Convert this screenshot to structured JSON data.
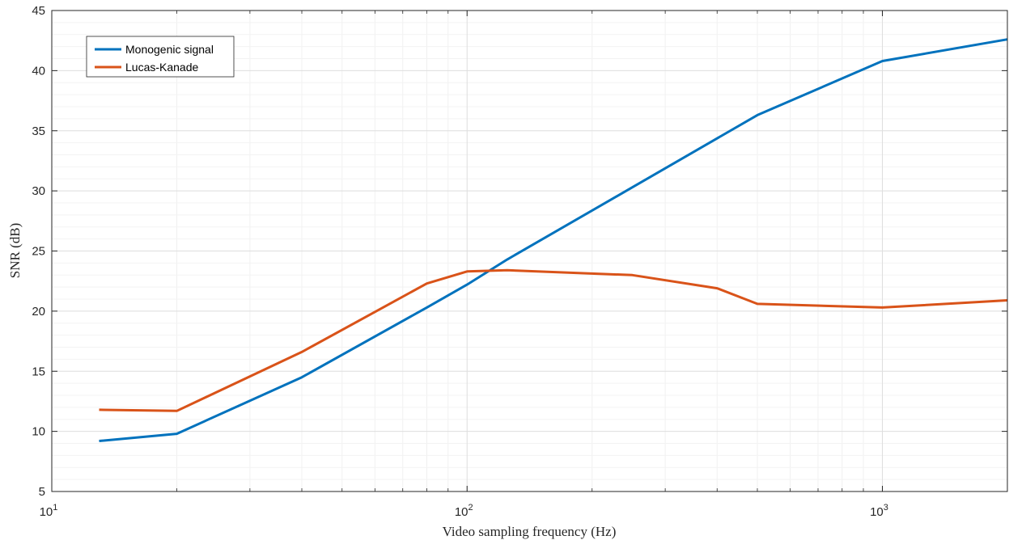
{
  "chart_data": {
    "type": "line",
    "xlabel": "Video sampling frequency (Hz)",
    "ylabel": "SNR (dB)",
    "xscale": "log",
    "xlim": [
      10,
      2000
    ],
    "ylim": [
      5,
      45
    ],
    "xticks": [
      10,
      100,
      1000
    ],
    "xtick_labels": [
      {
        "base": "10",
        "exp": "1"
      },
      {
        "base": "10",
        "exp": "2"
      },
      {
        "base": "10",
        "exp": "3"
      }
    ],
    "yticks": [
      5,
      10,
      15,
      20,
      25,
      30,
      35,
      40,
      45
    ],
    "grid": true,
    "legend_position": "top-left",
    "series": [
      {
        "name": "Monogenic signal",
        "color": "#0072BD",
        "x": [
          13,
          20,
          40,
          80,
          100,
          125,
          250,
          500,
          1000,
          2000
        ],
        "y": [
          9.2,
          9.8,
          14.5,
          20.3,
          22.2,
          24.3,
          30.3,
          36.3,
          40.8,
          42.6
        ]
      },
      {
        "name": "Lucas-Kanade",
        "color": "#D95319",
        "x": [
          13,
          20,
          40,
          80,
          100,
          125,
          250,
          400,
          500,
          1000,
          2000
        ],
        "y": [
          11.8,
          11.7,
          16.6,
          22.3,
          23.3,
          23.4,
          23.0,
          21.9,
          20.6,
          20.3,
          20.9
        ]
      }
    ]
  }
}
